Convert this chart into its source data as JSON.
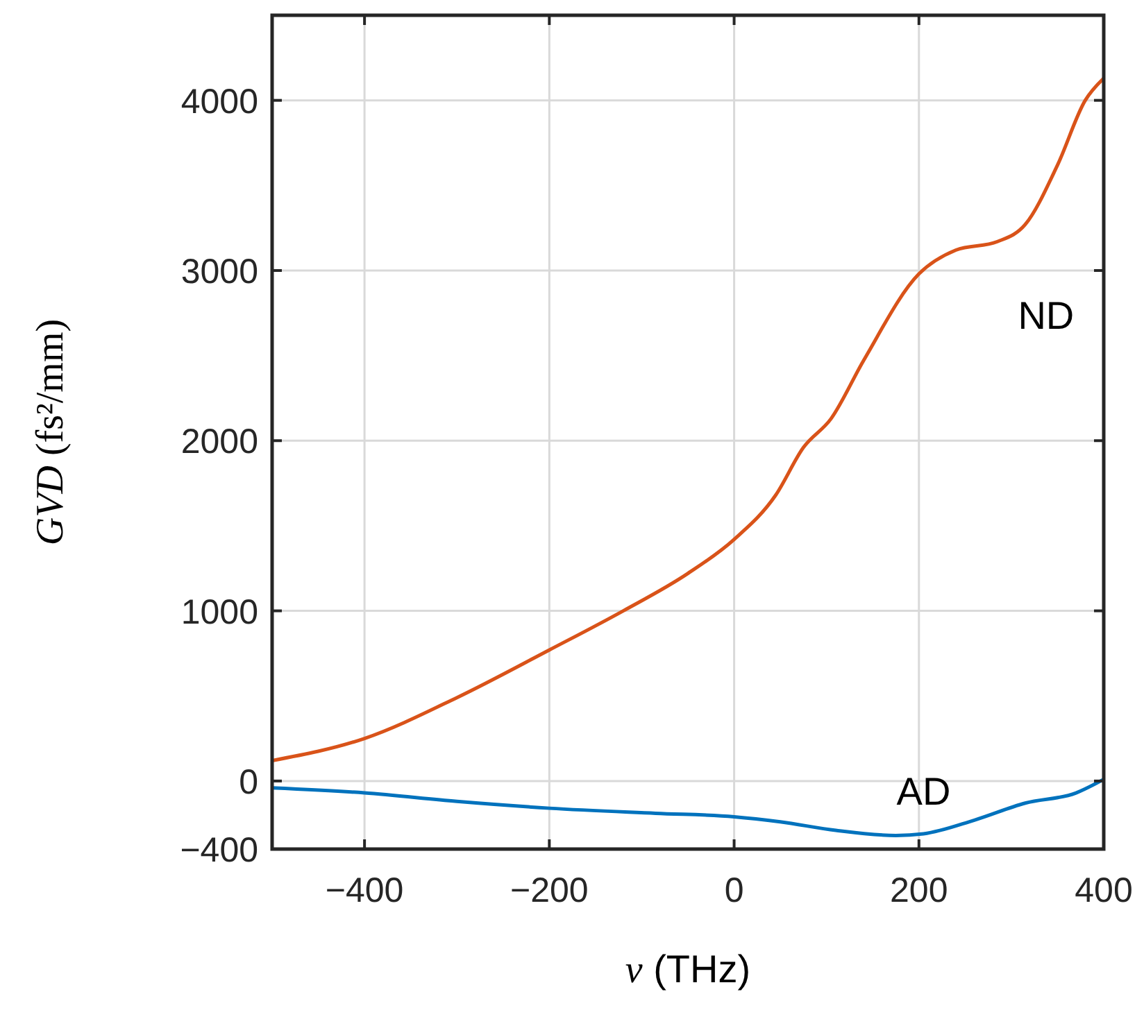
{
  "chart_data": {
    "type": "line",
    "xlabel": "ν (THz)",
    "ylabel": "GVD (fs²/mm)",
    "xlim": [
      -500,
      400
    ],
    "xticks": [
      {
        "value": -400,
        "label": "−400"
      },
      {
        "value": -200,
        "label": "−200"
      },
      0,
      200,
      400
    ],
    "ylim": [
      -400,
      4500
    ],
    "yticks": [
      {
        "value": -400,
        "label": "−400"
      },
      0,
      1000,
      2000,
      3000,
      4000
    ],
    "grid": true,
    "marker": "none",
    "line_style": "solid",
    "series": [
      {
        "name": "ND",
        "color": "#d95319",
        "x": [
          -500,
          -400,
          -300,
          -200,
          -120,
          -50,
          0,
          45,
          75,
          105,
          140,
          200,
          240,
          285,
          315,
          350,
          380,
          400
        ],
        "values": [
          120,
          250,
          490,
          770,
          1000,
          1220,
          1420,
          1680,
          1960,
          2130,
          2470,
          2980,
          3120,
          3170,
          3270,
          3620,
          4000,
          4130
        ]
      },
      {
        "name": "AD",
        "color": "#0072bd",
        "x": [
          -500,
          -400,
          -300,
          -200,
          -85,
          0,
          50,
          110,
          175,
          205,
          260,
          315,
          370,
          400
        ],
        "values": [
          -40,
          -70,
          -120,
          -160,
          -190,
          -210,
          -240,
          -290,
          -320,
          -310,
          -230,
          -130,
          -70,
          10
        ]
      }
    ]
  }
}
